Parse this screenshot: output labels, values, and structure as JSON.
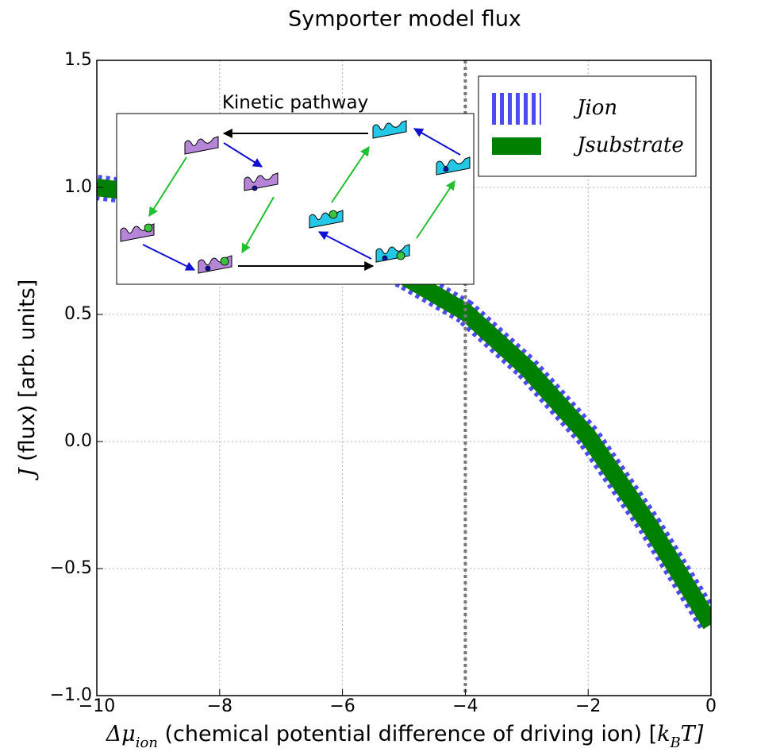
{
  "chart_data": {
    "type": "line",
    "title": "Symporter model flux",
    "xlabel": [
      "Δμ",
      "ion",
      " (chemical potential difference of driving ion) [",
      "k",
      "B",
      "T]"
    ],
    "ylabel": [
      "J",
      " (flux) [arb. units]"
    ],
    "x": [
      -10,
      -9,
      -8,
      -7,
      -6,
      -5,
      -4,
      -3,
      -2,
      -1,
      0
    ],
    "series": [
      {
        "name": "Jion",
        "color": "#4b4bef",
        "style": "dashed",
        "values": [
          1.0,
          0.97,
          0.92,
          0.85,
          0.76,
          0.65,
          0.51,
          0.29,
          0.02,
          -0.33,
          -0.72
        ]
      },
      {
        "name": "Jsubstrate",
        "color": "#008000",
        "style": "solid",
        "values": [
          1.0,
          0.97,
          0.92,
          0.85,
          0.76,
          0.65,
          0.51,
          0.29,
          0.02,
          -0.33,
          -0.72
        ]
      }
    ],
    "xlim": [
      -10,
      0
    ],
    "ylim": [
      -1.0,
      1.5
    ],
    "xticks": [
      {
        "value": -10,
        "label": "−10"
      },
      {
        "value": -8,
        "label": "−8"
      },
      {
        "value": -6,
        "label": "−6"
      },
      {
        "value": -4,
        "label": "−4"
      },
      {
        "value": -2,
        "label": "−2"
      },
      0
    ],
    "yticks": [
      {
        "value": -1.0,
        "label": "−1.0"
      },
      {
        "value": -0.5,
        "label": "−0.5"
      },
      {
        "value": 0.0,
        "label": "0.0"
      },
      0.5,
      {
        "value": 1.0,
        "label": "1.0"
      },
      1.5
    ],
    "vline": -4,
    "grid": true,
    "legend": "upper right",
    "inset_title": "Kinetic pathway"
  }
}
